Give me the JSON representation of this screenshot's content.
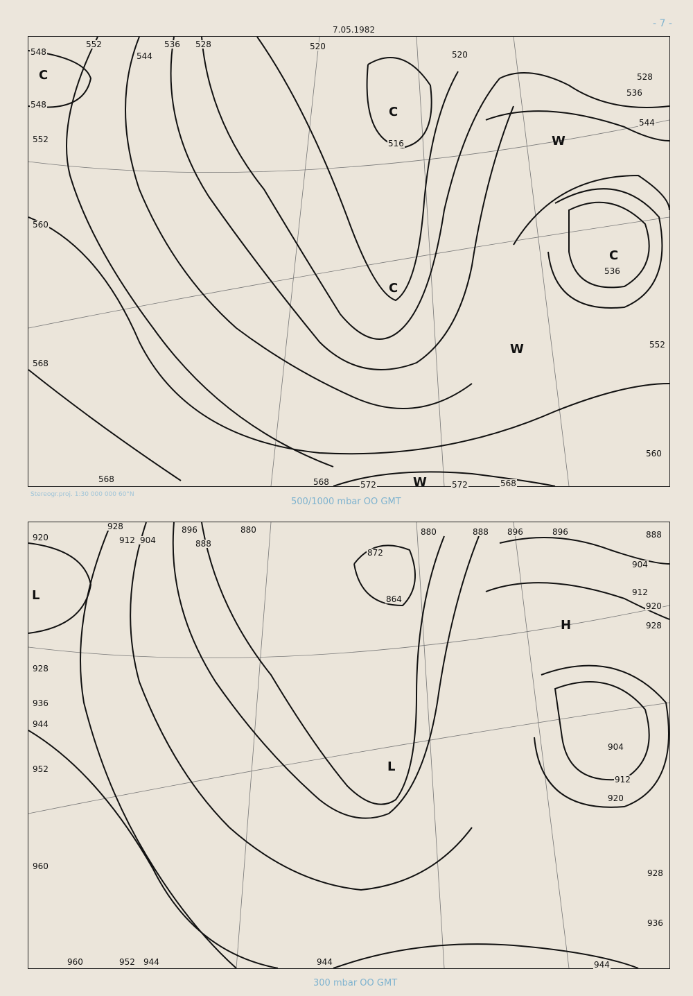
{
  "header": {
    "date": "7.05.1982",
    "page_number": "- 7 -"
  },
  "projection_note": "Stereogr.proj. 1:30 000 000    60°N",
  "colors": {
    "paper": "#ece6dc",
    "ink": "#111111",
    "caption": "#7fb3cf"
  },
  "maps": [
    {
      "caption": "500/1000 mbar  OO GMT",
      "contour_labels": [
        "548",
        "552",
        "544",
        "536",
        "528",
        "520",
        "548",
        "552",
        "560",
        "568",
        "568",
        "568",
        "572",
        "572",
        "568",
        "520",
        "528",
        "536",
        "544",
        "552",
        "560",
        "516",
        "536"
      ],
      "centers": [
        "C",
        "C",
        "C",
        "C",
        "W",
        "W",
        "W"
      ]
    },
    {
      "caption": "300 mbar  OO GMT",
      "contour_labels": [
        "928",
        "920",
        "912",
        "904",
        "896",
        "888",
        "880",
        "880",
        "888",
        "896",
        "896",
        "888",
        "904",
        "912",
        "920",
        "928",
        "936",
        "944",
        "952",
        "960",
        "960",
        "952",
        "944",
        "944",
        "944",
        "936",
        "928",
        "920",
        "928",
        "872",
        "864",
        "904",
        "912",
        "920"
      ],
      "centers": [
        "L",
        "L",
        "L",
        "H"
      ]
    }
  ]
}
